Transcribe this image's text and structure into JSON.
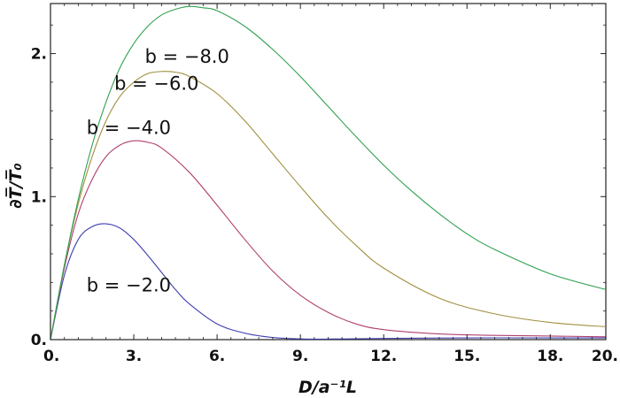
{
  "chart_data": {
    "type": "line",
    "title": "",
    "xlabel": "D/a⁻¹L",
    "ylabel": "∂T̅/T̅₀",
    "xlim": [
      0,
      20
    ],
    "ylim": [
      0,
      2.35
    ],
    "grid": false,
    "legend": "none",
    "x_ticks": [
      0,
      3,
      6,
      9,
      12,
      15,
      18,
      20
    ],
    "x_tick_labels": [
      "0.",
      "3.",
      "6.",
      "9.",
      "12.",
      "15.",
      "18.",
      "20."
    ],
    "y_ticks": [
      0,
      1,
      2
    ],
    "y_tick_labels": [
      "0.",
      "1.",
      "2."
    ],
    "series": [
      {
        "label": "b = −2.0",
        "label_at": [
          1.3,
          0.38
        ],
        "color": "#4040b0",
        "x": [
          0,
          0.5,
          1,
          1.5,
          2,
          2.5,
          3,
          3.5,
          4,
          4.5,
          5,
          6,
          7,
          8,
          9,
          10,
          12,
          15,
          18,
          20
        ],
        "y": [
          0,
          0.45,
          0.7,
          0.79,
          0.81,
          0.78,
          0.7,
          0.59,
          0.47,
          0.35,
          0.25,
          0.11,
          0.045,
          0.015,
          0.005,
          0.004,
          0.008,
          0.012,
          0.012,
          0.012
        ]
      },
      {
        "label": "b = −4.0",
        "label_at": [
          1.3,
          1.48
        ],
        "color": "#b04070",
        "x": [
          0,
          0.5,
          1,
          1.5,
          2,
          2.5,
          3,
          3.5,
          4,
          5,
          6,
          7,
          8,
          9,
          10,
          11,
          12,
          14,
          16,
          18,
          20
        ],
        "y": [
          0,
          0.5,
          0.88,
          1.12,
          1.28,
          1.36,
          1.39,
          1.38,
          1.34,
          1.17,
          0.94,
          0.7,
          0.48,
          0.31,
          0.19,
          0.11,
          0.07,
          0.04,
          0.03,
          0.025,
          0.02
        ]
      },
      {
        "label": "b = −6.0",
        "label_at": [
          2.3,
          1.79
        ],
        "color": "#a09040",
        "x": [
          0,
          0.5,
          1,
          1.5,
          2,
          2.5,
          3,
          3.5,
          4,
          4.5,
          5,
          6,
          7,
          8,
          9,
          10,
          11,
          12,
          14,
          16,
          18,
          20
        ],
        "y": [
          0,
          0.52,
          0.95,
          1.28,
          1.53,
          1.7,
          1.8,
          1.86,
          1.875,
          1.87,
          1.84,
          1.72,
          1.53,
          1.3,
          1.07,
          0.85,
          0.66,
          0.5,
          0.29,
          0.18,
          0.12,
          0.09
        ]
      },
      {
        "label": "b = −8.0",
        "label_at": [
          3.4,
          1.98
        ],
        "color": "#30a050",
        "x": [
          0,
          0.5,
          1,
          1.5,
          2,
          2.5,
          3,
          3.5,
          4,
          4.5,
          5,
          5.5,
          6,
          7,
          8,
          9,
          10,
          11,
          12,
          13,
          14,
          15,
          16,
          18,
          20
        ],
        "y": [
          0,
          0.52,
          0.98,
          1.36,
          1.66,
          1.9,
          2.07,
          2.19,
          2.27,
          2.31,
          2.33,
          2.32,
          2.3,
          2.19,
          2.03,
          1.84,
          1.63,
          1.42,
          1.22,
          1.04,
          0.88,
          0.74,
          0.63,
          0.46,
          0.35
        ]
      }
    ]
  }
}
